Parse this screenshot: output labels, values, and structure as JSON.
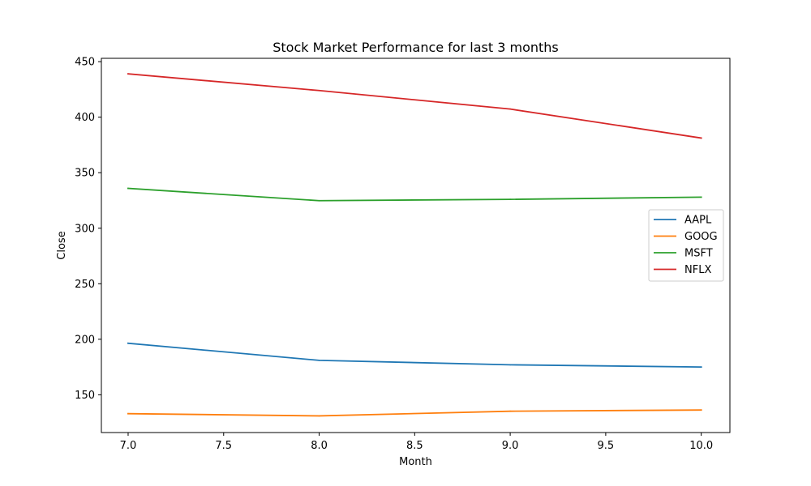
{
  "chart_data": {
    "type": "line",
    "title": "Stock Market Performance for last 3 months",
    "xlabel": "Month",
    "ylabel": "Close",
    "x": [
      7,
      8,
      9,
      10
    ],
    "xlim": [
      6.86,
      10.15
    ],
    "ylim": [
      116,
      453
    ],
    "xticks": [
      7.0,
      7.5,
      8.0,
      8.5,
      9.0,
      9.5,
      10.0
    ],
    "xtick_labels": [
      "7.0",
      "7.5",
      "8.0",
      "8.5",
      "9.0",
      "9.5",
      "10.0"
    ],
    "yticks": [
      150,
      200,
      250,
      300,
      350,
      400,
      450
    ],
    "ytick_labels": [
      "150",
      "200",
      "250",
      "300",
      "350",
      "400",
      "450"
    ],
    "grid": false,
    "legend_position": "center-right",
    "series": [
      {
        "name": "AAPL",
        "color": "#1f77b4",
        "values": [
          196.4,
          181.0,
          177.0,
          175.0
        ]
      },
      {
        "name": "GOOG",
        "color": "#ff7f0e",
        "values": [
          133.0,
          131.0,
          135.2,
          136.3
        ]
      },
      {
        "name": "MSFT",
        "color": "#2ca02c",
        "values": [
          335.9,
          324.8,
          326.0,
          328.0
        ]
      },
      {
        "name": "NFLX",
        "color": "#d62728",
        "values": [
          439.0,
          424.0,
          407.3,
          381.2
        ]
      }
    ]
  }
}
